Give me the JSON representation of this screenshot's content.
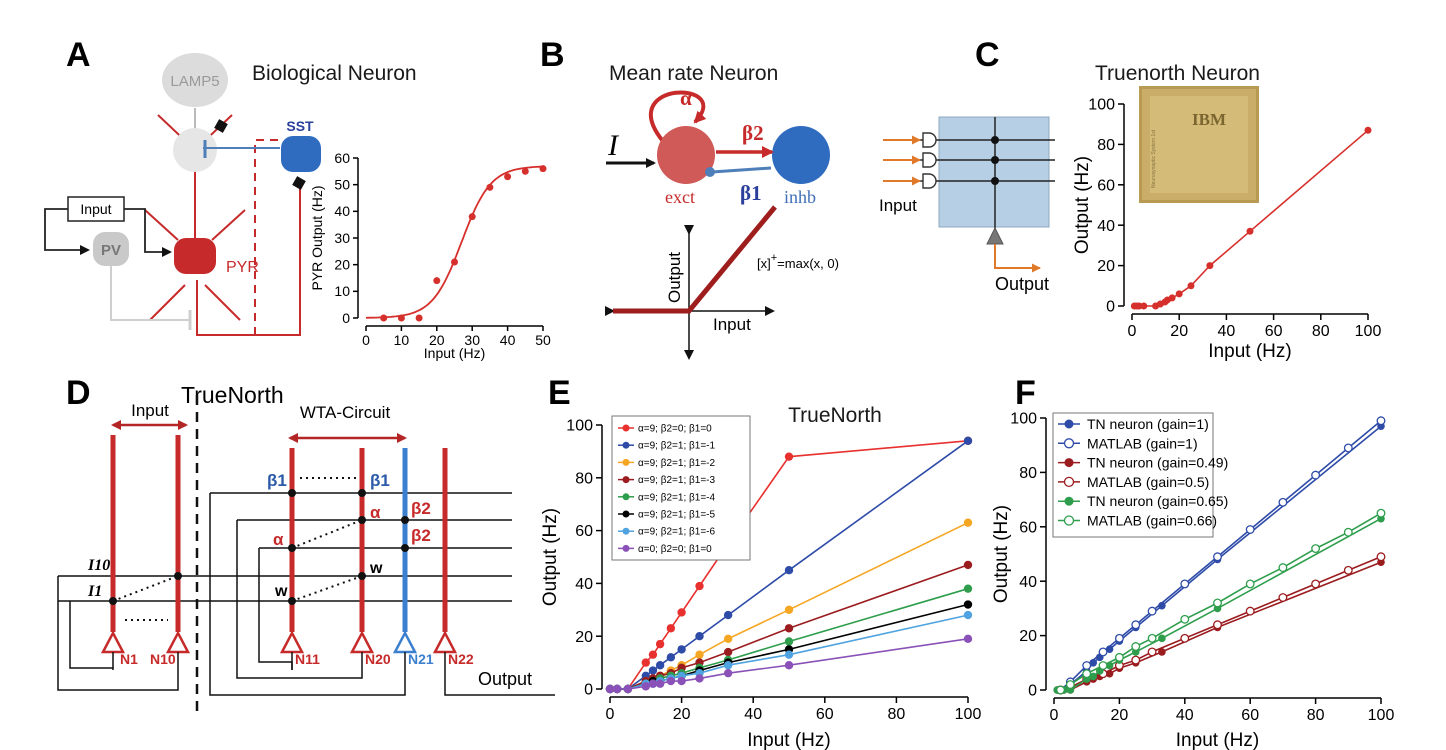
{
  "panels": {
    "A": {
      "letter": "A",
      "title": "Biological Neuron",
      "labels": {
        "lamp5": "LAMP5",
        "sst": "SST",
        "input": "Input",
        "pv": "PV",
        "pyr": "PYR"
      }
    },
    "B": {
      "letter": "B",
      "title": "Mean rate Neuron",
      "labels": {
        "input_symbol": "I",
        "alpha": "α",
        "beta2": "β2",
        "beta1": "β1",
        "exct": "exct",
        "inhb": "inhb",
        "output": "Output",
        "input": "Input",
        "relu": "[x]",
        "relu_sup": "+",
        "relu_rest": "=max(x, 0)"
      }
    },
    "C": {
      "letter": "C",
      "title": "Truenorth Neuron",
      "labels": {
        "input": "Input",
        "output": "Output",
        "chip_brand": "IBM",
        "chip_small": "Neurosynaptic System 1st"
      }
    },
    "D": {
      "letter": "D",
      "title": "TrueNorth",
      "labels": {
        "input": "Input",
        "wta": "WTA-Circuit",
        "b1a": "β1",
        "b1b": "β1",
        "b2a": "β2",
        "b2b": "β2",
        "alpha": "α",
        "alpha2": "α",
        "w1": "w",
        "w2": "w",
        "i10": "I10",
        "i1": "I1",
        "n1": "N1",
        "n10": "N10",
        "n11": "N11",
        "n20": "N20",
        "n21": "N21",
        "n22": "N22",
        "output": "Output"
      }
    },
    "E": {
      "letter": "E",
      "title": "TrueNorth"
    },
    "F": {
      "letter": "F"
    }
  },
  "chart_data": [
    {
      "id": "A",
      "type": "scatter",
      "xlabel": "Input (Hz)",
      "ylabel": "PYR Output (Hz)",
      "xlim": [
        0,
        50
      ],
      "ylim": [
        0,
        60
      ],
      "xticks": [
        0,
        10,
        20,
        30,
        40,
        50
      ],
      "yticks": [
        0,
        10,
        20,
        30,
        40,
        50,
        60
      ],
      "series": [
        {
          "color": "#d6302c",
          "points": [
            [
              5,
              0
            ],
            [
              10,
              0
            ],
            [
              15,
              0
            ],
            [
              20,
              14
            ],
            [
              25,
              21
            ],
            [
              30,
              38
            ],
            [
              35,
              49
            ],
            [
              40,
              53
            ],
            [
              45,
              55
            ],
            [
              50,
              56
            ]
          ]
        }
      ],
      "fit_curve": {
        "type": "sigmoid",
        "color": "#d6302c"
      }
    },
    {
      "id": "C",
      "type": "scatter",
      "xlabel": "Input (Hz)",
      "ylabel": "Output (Hz)",
      "xlim": [
        0,
        100
      ],
      "ylim": [
        0,
        100
      ],
      "xticks": [
        0,
        20,
        40,
        60,
        80,
        100
      ],
      "yticks": [
        0,
        20,
        40,
        60,
        80,
        100
      ],
      "series": [
        {
          "color": "#d6302c",
          "line": true,
          "points": [
            [
              1,
              0
            ],
            [
              2,
              0
            ],
            [
              3,
              0
            ],
            [
              5,
              0
            ],
            [
              10,
              0
            ],
            [
              12,
              1
            ],
            [
              14,
              2
            ],
            [
              15,
              3
            ],
            [
              17,
              4
            ],
            [
              20,
              6
            ],
            [
              25,
              10
            ],
            [
              33,
              20
            ],
            [
              50,
              37
            ],
            [
              100,
              87
            ]
          ]
        }
      ]
    },
    {
      "id": "E",
      "type": "line",
      "title": "TrueNorth",
      "xlabel": "Input (Hz)",
      "ylabel": "Output (Hz)",
      "xlim": [
        0,
        100
      ],
      "ylim": [
        0,
        100
      ],
      "xticks": [
        0,
        20,
        40,
        60,
        80,
        100
      ],
      "yticks": [
        0,
        20,
        40,
        60,
        80,
        100
      ],
      "legend_position": "top-left",
      "series": [
        {
          "name": "α=9; β2=0; β1=0",
          "color": "#e8312e",
          "points": [
            [
              0,
              0
            ],
            [
              2,
              0
            ],
            [
              5,
              0
            ],
            [
              10,
              10
            ],
            [
              12,
              13
            ],
            [
              14,
              17
            ],
            [
              17,
              23
            ],
            [
              20,
              29
            ],
            [
              25,
              39
            ],
            [
              33,
              55
            ],
            [
              50,
              88
            ],
            [
              100,
              94
            ]
          ]
        },
        {
          "name": "α=9; β2=1; β1=-1",
          "color": "#2e4ba8",
          "points": [
            [
              0,
              0
            ],
            [
              2,
              0
            ],
            [
              5,
              0
            ],
            [
              10,
              5
            ],
            [
              12,
              7
            ],
            [
              14,
              9
            ],
            [
              17,
              12
            ],
            [
              20,
              15
            ],
            [
              25,
              20
            ],
            [
              33,
              28
            ],
            [
              50,
              45
            ],
            [
              100,
              94
            ]
          ]
        },
        {
          "name": "α=9; β2=1; β1=-2",
          "color": "#f5a623",
          "points": [
            [
              0,
              0
            ],
            [
              2,
              0
            ],
            [
              5,
              0
            ],
            [
              10,
              3
            ],
            [
              12,
              4
            ],
            [
              14,
              5
            ],
            [
              17,
              7
            ],
            [
              20,
              9
            ],
            [
              25,
              13
            ],
            [
              33,
              19
            ],
            [
              50,
              30
            ],
            [
              100,
              63
            ]
          ]
        },
        {
          "name": "α=9; β2=1; β1=-3",
          "color": "#9b1c1f",
          "points": [
            [
              0,
              0
            ],
            [
              2,
              0
            ],
            [
              5,
              0
            ],
            [
              10,
              3
            ],
            [
              12,
              4
            ],
            [
              14,
              5
            ],
            [
              17,
              6
            ],
            [
              20,
              8
            ],
            [
              25,
              10
            ],
            [
              33,
              14
            ],
            [
              50,
              23
            ],
            [
              100,
              47
            ]
          ]
        },
        {
          "name": "α=9; β2=1; β1=-4",
          "color": "#2e9e4c",
          "points": [
            [
              0,
              0
            ],
            [
              2,
              0
            ],
            [
              5,
              0
            ],
            [
              10,
              2
            ],
            [
              12,
              3
            ],
            [
              14,
              4
            ],
            [
              17,
              5
            ],
            [
              20,
              6
            ],
            [
              25,
              8
            ],
            [
              33,
              11
            ],
            [
              50,
              18
            ],
            [
              100,
              38
            ]
          ]
        },
        {
          "name": "α=9; β2=1; β1=-5",
          "color": "#000000",
          "points": [
            [
              0,
              0
            ],
            [
              2,
              0
            ],
            [
              5,
              0
            ],
            [
              10,
              2
            ],
            [
              12,
              3
            ],
            [
              14,
              3
            ],
            [
              17,
              4
            ],
            [
              20,
              5
            ],
            [
              25,
              7
            ],
            [
              33,
              10
            ],
            [
              50,
              15
            ],
            [
              100,
              32
            ]
          ]
        },
        {
          "name": "α=9; β2=1; β1=-6",
          "color": "#4fa3e0",
          "points": [
            [
              0,
              0
            ],
            [
              2,
              0
            ],
            [
              5,
              0
            ],
            [
              10,
              2
            ],
            [
              12,
              2
            ],
            [
              14,
              3
            ],
            [
              17,
              4
            ],
            [
              20,
              5
            ],
            [
              25,
              6
            ],
            [
              33,
              9
            ],
            [
              50,
              13
            ],
            [
              100,
              28
            ]
          ]
        },
        {
          "name": "α=0; β2=0; β1=0",
          "color": "#8a52b8",
          "points": [
            [
              0,
              0
            ],
            [
              2,
              0
            ],
            [
              5,
              0
            ],
            [
              10,
              1
            ],
            [
              12,
              2
            ],
            [
              14,
              2
            ],
            [
              17,
              3
            ],
            [
              20,
              3
            ],
            [
              25,
              4
            ],
            [
              33,
              6
            ],
            [
              50,
              9
            ],
            [
              100,
              19
            ]
          ]
        }
      ]
    },
    {
      "id": "F",
      "type": "line",
      "xlabel": "Input (Hz)",
      "ylabel": "Output (Hz)",
      "xlim": [
        0,
        100
      ],
      "ylim": [
        0,
        100
      ],
      "xticks": [
        0,
        20,
        40,
        60,
        80,
        100
      ],
      "yticks": [
        0,
        20,
        40,
        60,
        80,
        100
      ],
      "legend_position": "top-left",
      "series": [
        {
          "name": "TN neuron (gain=1)",
          "color": "#2e4ba8",
          "marker": "filled",
          "points": [
            [
              1,
              0
            ],
            [
              2,
              0
            ],
            [
              3,
              0
            ],
            [
              5,
              2
            ],
            [
              10,
              7
            ],
            [
              12,
              10
            ],
            [
              14,
              12
            ],
            [
              17,
              15
            ],
            [
              20,
              18
            ],
            [
              25,
              23
            ],
            [
              33,
              31
            ],
            [
              50,
              48
            ],
            [
              100,
              97
            ]
          ]
        },
        {
          "name": "MATLAB (gain=1)",
          "color": "#2e4ba8",
          "marker": "open",
          "points": [
            [
              2,
              0
            ],
            [
              5,
              3
            ],
            [
              10,
              9
            ],
            [
              15,
              14
            ],
            [
              20,
              19
            ],
            [
              25,
              24
            ],
            [
              30,
              29
            ],
            [
              40,
              39
            ],
            [
              50,
              49
            ],
            [
              60,
              59
            ],
            [
              70,
              69
            ],
            [
              80,
              79
            ],
            [
              90,
              89
            ],
            [
              100,
              99
            ]
          ]
        },
        {
          "name": "TN neuron (gain=0.49)",
          "color": "#9b1c1f",
          "marker": "filled",
          "points": [
            [
              1,
              0
            ],
            [
              2,
              0
            ],
            [
              3,
              0
            ],
            [
              5,
              0
            ],
            [
              10,
              3
            ],
            [
              12,
              4
            ],
            [
              14,
              5
            ],
            [
              17,
              6
            ],
            [
              20,
              8
            ],
            [
              25,
              10
            ],
            [
              33,
              14
            ],
            [
              50,
              23
            ],
            [
              100,
              47
            ]
          ]
        },
        {
          "name": "MATLAB (gain=0.5)",
          "color": "#9b1c1f",
          "marker": "open",
          "points": [
            [
              2,
              0
            ],
            [
              5,
              1
            ],
            [
              10,
              4
            ],
            [
              15,
              6
            ],
            [
              20,
              9
            ],
            [
              25,
              11
            ],
            [
              30,
              14
            ],
            [
              40,
              19
            ],
            [
              50,
              24
            ],
            [
              60,
              29
            ],
            [
              70,
              34
            ],
            [
              80,
              39
            ],
            [
              90,
              44
            ],
            [
              100,
              49
            ]
          ]
        },
        {
          "name": "TN neuron (gain=0.65)",
          "color": "#2e9e4c",
          "marker": "filled",
          "points": [
            [
              1,
              0
            ],
            [
              2,
              0
            ],
            [
              3,
              0
            ],
            [
              5,
              0
            ],
            [
              10,
              4
            ],
            [
              12,
              5
            ],
            [
              14,
              7
            ],
            [
              17,
              9
            ],
            [
              20,
              11
            ],
            [
              25,
              14
            ],
            [
              33,
              19
            ],
            [
              50,
              30
            ],
            [
              100,
              63
            ]
          ]
        },
        {
          "name": "MATLAB (gain=0.66)",
          "color": "#2e9e4c",
          "marker": "open",
          "points": [
            [
              2,
              0
            ],
            [
              5,
              2
            ],
            [
              10,
              6
            ],
            [
              15,
              9
            ],
            [
              20,
              12
            ],
            [
              25,
              16
            ],
            [
              30,
              19
            ],
            [
              40,
              26
            ],
            [
              50,
              32
            ],
            [
              60,
              39
            ],
            [
              70,
              45
            ],
            [
              80,
              52
            ],
            [
              90,
              58
            ],
            [
              100,
              65
            ]
          ]
        }
      ]
    }
  ]
}
